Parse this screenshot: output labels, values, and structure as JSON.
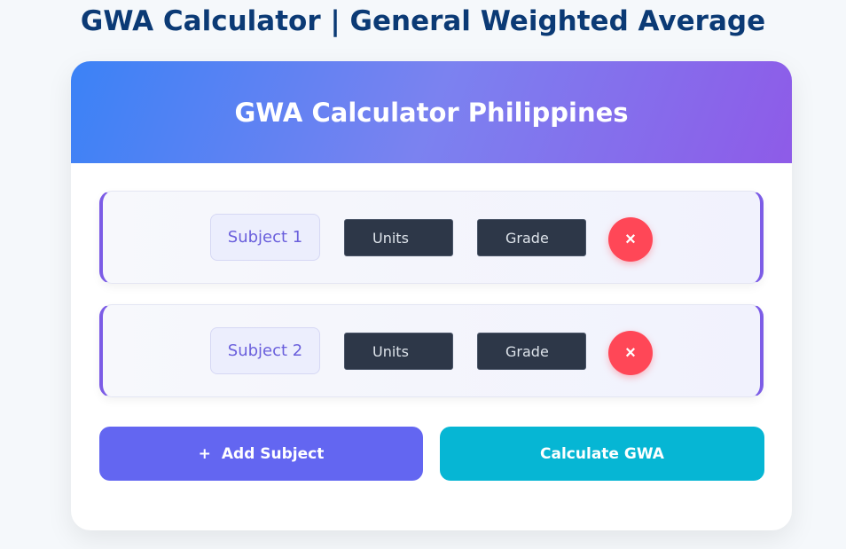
{
  "page_title": "GWA Calculator | General Weighted Average",
  "card": {
    "header": "GWA Calculator Philippines"
  },
  "subjects": [
    {
      "label": "Subject 1",
      "units_placeholder": "Units",
      "grade_placeholder": "Grade",
      "delete_icon": "×"
    },
    {
      "label": "Subject 2",
      "units_placeholder": "Units",
      "grade_placeholder": "Grade",
      "delete_icon": "×"
    }
  ],
  "buttons": {
    "add_icon": "+",
    "add": "Add Subject",
    "calculate": "Calculate GWA"
  },
  "colors": {
    "add": "#6366f1",
    "calculate": "#06b6d4",
    "delete": "#ff4757",
    "accent": "#7c5ce6"
  }
}
